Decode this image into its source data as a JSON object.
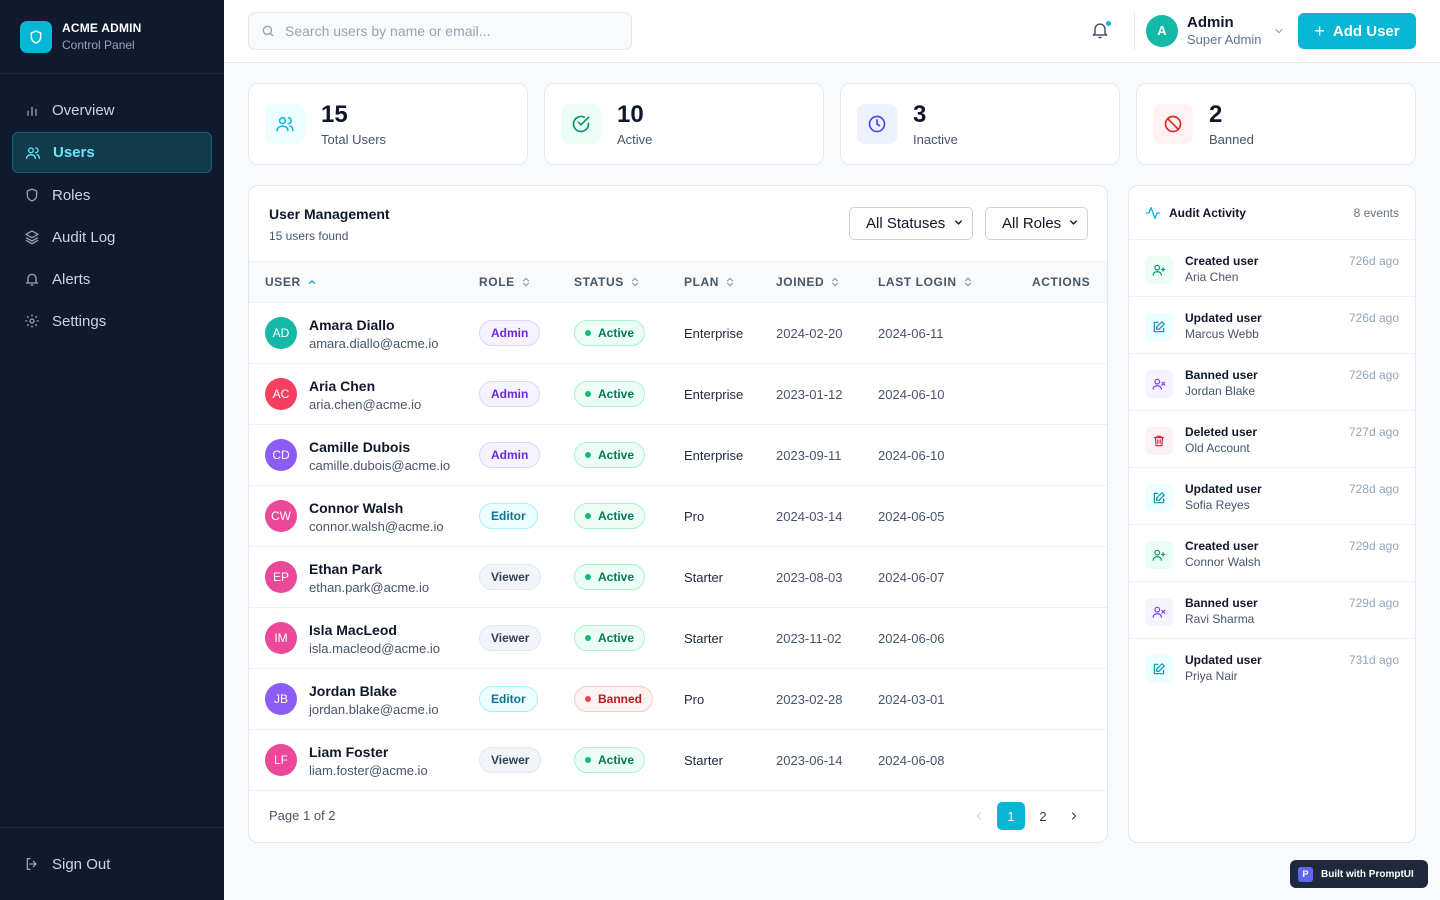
{
  "brand": {
    "title": "ACME ADMIN",
    "subtitle": "Control Panel"
  },
  "sidebar": {
    "items": [
      {
        "label": "Overview",
        "icon": "bar-chart-icon",
        "active": false
      },
      {
        "label": "Users",
        "icon": "users-icon",
        "active": true
      },
      {
        "label": "Roles",
        "icon": "shield-icon",
        "active": false
      },
      {
        "label": "Audit Log",
        "icon": "layers-icon",
        "active": false
      },
      {
        "label": "Alerts",
        "icon": "bell-icon",
        "active": false
      },
      {
        "label": "Settings",
        "icon": "gear-icon",
        "active": false
      }
    ],
    "signout_label": "Sign Out"
  },
  "header": {
    "search_placeholder": "Search users by name or email...",
    "user_initial": "A",
    "user_name": "Admin",
    "user_role": "Super Admin",
    "add_user_label": "Add User"
  },
  "stats": [
    {
      "value": "15",
      "label": "Total Users",
      "icon": "users-icon",
      "color": "#06b6d4",
      "bg": "#ecfeff"
    },
    {
      "value": "10",
      "label": "Active",
      "icon": "check-circle-icon",
      "color": "#059669",
      "bg": "#ecfdf5"
    },
    {
      "value": "3",
      "label": "Inactive",
      "icon": "clock-icon",
      "color": "#4f46e5",
      "bg": "#eef2ff"
    },
    {
      "value": "2",
      "label": "Banned",
      "icon": "ban-icon",
      "color": "#dc2626",
      "bg": "#fef2f2"
    }
  ],
  "users_panel": {
    "title": "User Management",
    "subtitle": "15 users found",
    "status_filter": "All Statuses",
    "role_filter": "All Roles",
    "columns": [
      "USER",
      "ROLE",
      "STATUS",
      "PLAN",
      "JOINED",
      "LAST LOGIN",
      "ACTIONS"
    ],
    "rows": [
      {
        "initials": "AD",
        "name": "Amara Diallo",
        "email": "amara.diallo@acme.io",
        "role": "Admin",
        "status": "Active",
        "plan": "Enterprise",
        "joined": "2024-02-20",
        "last_login": "2024-06-11",
        "avatar_color": "#14b8a6"
      },
      {
        "initials": "AC",
        "name": "Aria Chen",
        "email": "aria.chen@acme.io",
        "role": "Admin",
        "status": "Active",
        "plan": "Enterprise",
        "joined": "2023-01-12",
        "last_login": "2024-06-10",
        "avatar_color": "#f43f5e"
      },
      {
        "initials": "CD",
        "name": "Camille Dubois",
        "email": "camille.dubois@acme.io",
        "role": "Admin",
        "status": "Active",
        "plan": "Enterprise",
        "joined": "2023-09-11",
        "last_login": "2024-06-10",
        "avatar_color": "#8b5cf6"
      },
      {
        "initials": "CW",
        "name": "Connor Walsh",
        "email": "connor.walsh@acme.io",
        "role": "Editor",
        "status": "Active",
        "plan": "Pro",
        "joined": "2024-03-14",
        "last_login": "2024-06-05",
        "avatar_color": "#ec4899"
      },
      {
        "initials": "EP",
        "name": "Ethan Park",
        "email": "ethan.park@acme.io",
        "role": "Viewer",
        "status": "Active",
        "plan": "Starter",
        "joined": "2023-08-03",
        "last_login": "2024-06-07",
        "avatar_color": "#ec4899"
      },
      {
        "initials": "IM",
        "name": "Isla MacLeod",
        "email": "isla.macleod@acme.io",
        "role": "Viewer",
        "status": "Active",
        "plan": "Starter",
        "joined": "2023-11-02",
        "last_login": "2024-06-06",
        "avatar_color": "#ec4899"
      },
      {
        "initials": "JB",
        "name": "Jordan Blake",
        "email": "jordan.blake@acme.io",
        "role": "Editor",
        "status": "Banned",
        "plan": "Pro",
        "joined": "2023-02-28",
        "last_login": "2024-03-01",
        "avatar_color": "#8b5cf6"
      },
      {
        "initials": "LF",
        "name": "Liam Foster",
        "email": "liam.foster@acme.io",
        "role": "Viewer",
        "status": "Active",
        "plan": "Starter",
        "joined": "2023-06-14",
        "last_login": "2024-06-08",
        "avatar_color": "#ec4899"
      }
    ],
    "pagination": {
      "label": "Page 1 of 2",
      "pages": [
        "1",
        "2"
      ],
      "current": "1"
    }
  },
  "audit": {
    "title": "Audit Activity",
    "count": "8 events",
    "events": [
      {
        "action": "Created user",
        "target": "Aria Chen",
        "time": "726d ago",
        "icon": "user-plus-icon",
        "color": "#059669",
        "bg": "#ecfdf5"
      },
      {
        "action": "Updated user",
        "target": "Marcus Webb",
        "time": "726d ago",
        "icon": "edit-icon",
        "color": "#0891b2",
        "bg": "#ecfeff"
      },
      {
        "action": "Banned user",
        "target": "Jordan Blake",
        "time": "726d ago",
        "icon": "user-x-icon",
        "color": "#7c3aed",
        "bg": "#f5f3ff"
      },
      {
        "action": "Deleted user",
        "target": "Old Account",
        "time": "727d ago",
        "icon": "trash-icon",
        "color": "#e11d48",
        "bg": "#fff1f2"
      },
      {
        "action": "Updated user",
        "target": "Sofia Reyes",
        "time": "728d ago",
        "icon": "edit-icon",
        "color": "#0891b2",
        "bg": "#ecfeff"
      },
      {
        "action": "Created user",
        "target": "Connor Walsh",
        "time": "729d ago",
        "icon": "user-plus-icon",
        "color": "#059669",
        "bg": "#ecfdf5"
      },
      {
        "action": "Banned user",
        "target": "Ravi Sharma",
        "time": "729d ago",
        "icon": "user-x-icon",
        "color": "#7c3aed",
        "bg": "#f5f3ff"
      },
      {
        "action": "Updated user",
        "target": "Priya Nair",
        "time": "731d ago",
        "icon": "edit-icon",
        "color": "#0891b2",
        "bg": "#ecfeff"
      }
    ]
  },
  "footer_badge": {
    "letter": "P",
    "label": "Built with PromptUI"
  }
}
